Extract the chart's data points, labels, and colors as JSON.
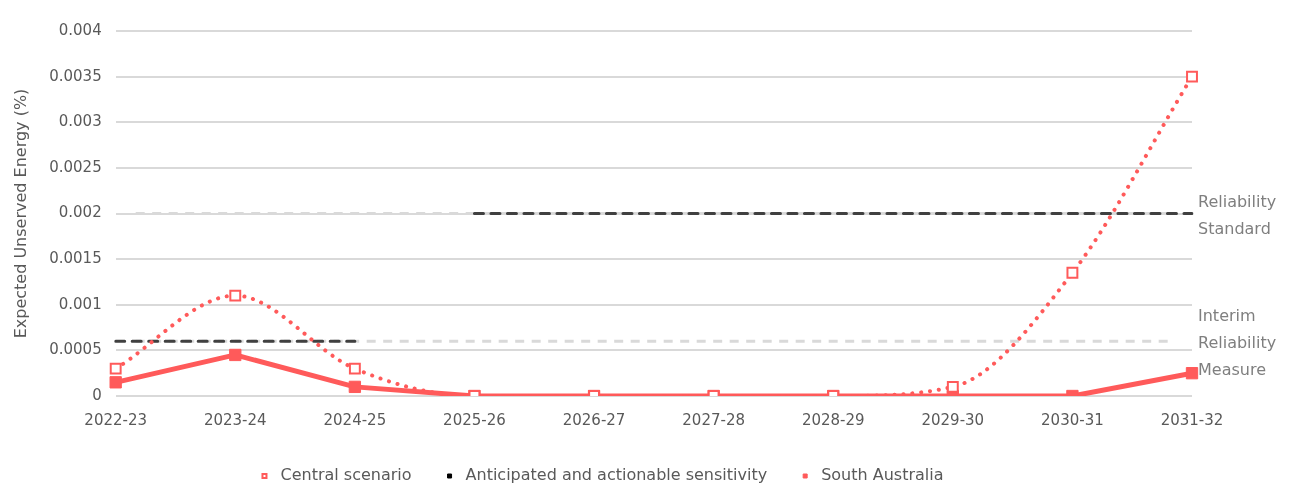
{
  "chart_data": {
    "type": "line",
    "ylabel": "Expected Unserved Energy (%)",
    "categories": [
      "2022-23",
      "2023-24",
      "2024-25",
      "2025-26",
      "2026-27",
      "2027-28",
      "2028-29",
      "2029-30",
      "2030-31",
      "2031-32"
    ],
    "series": [
      {
        "name": "Central scenario",
        "color": "#ff5a5a",
        "line_style": "dotted",
        "marker": "square",
        "values": [
          0.0003,
          0.0011,
          0.0003,
          0,
          0,
          0,
          0,
          0.0001,
          0.00135,
          0.0035
        ]
      },
      {
        "name": "Anticipated and actionable sensitivity",
        "color": "#000000",
        "marker": "square",
        "values": [
          null,
          null,
          null,
          null,
          null,
          null,
          null,
          null,
          null,
          null
        ]
      },
      {
        "name": "South Australia",
        "color": "#ff5a5a",
        "marker": "square",
        "values": [
          0.00015,
          0.00045,
          0.0001,
          0,
          0,
          0,
          0,
          0,
          0,
          0.00025
        ]
      },
      {
        "color": "#404040",
        "line_style": "dashed",
        "marker": "none",
        "values": [
          0.0006,
          0.0006,
          0.0006,
          null,
          null,
          null,
          null,
          null,
          null,
          null
        ]
      },
      {
        "color": "#404040",
        "line_style": "dashed",
        "marker": "none",
        "values": [
          null,
          null,
          null,
          0.002,
          0.002,
          0.002,
          0.002,
          0.002,
          0.002,
          0.002
        ]
      }
    ],
    "ylim": [
      0,
      0.004
    ],
    "yticks": [
      0,
      0.0005,
      0.001,
      0.0015,
      0.002,
      0.0025,
      0.003,
      0.0035,
      0.004
    ],
    "ref_lines": [
      {
        "axis": "y",
        "value": 0.002,
        "label": "Reliability Standard",
        "color": "#d9d9d9",
        "line_style": "dashed"
      },
      {
        "axis": "y",
        "value": 0.0006,
        "label": "Interim Reliability Measure",
        "color": "#d9d9d9",
        "line_style": "dashed"
      }
    ],
    "grid": "y",
    "legend": "bottom"
  }
}
